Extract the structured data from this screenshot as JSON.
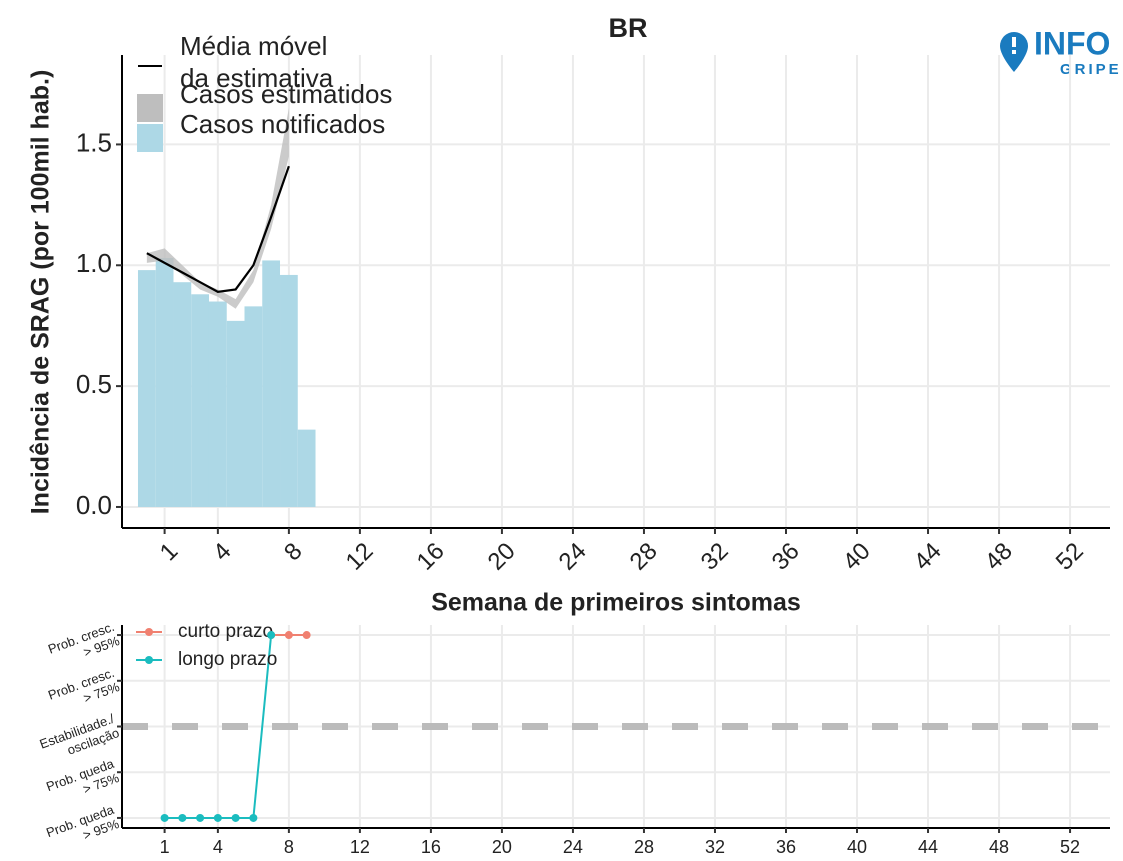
{
  "chart_data": [
    {
      "type": "bar",
      "title": "BR",
      "x_label": "Semana de primeiros sintomas",
      "y_label": "Incidência de SRAG (por 100mil hab.)",
      "xlim": [
        -1.4,
        54.25
      ],
      "ylim": [
        -0.087,
        1.87
      ],
      "xticks": [
        1,
        4,
        8,
        12,
        16,
        20,
        24,
        28,
        32,
        36,
        40,
        44,
        48,
        52
      ],
      "yticks": [
        {
          "value": 0,
          "label": "0.0"
        },
        {
          "value": 0.5,
          "label": "0.5"
        },
        {
          "value": 1,
          "label": "1.0"
        },
        {
          "value": 1.5,
          "label": "1.5"
        }
      ],
      "grid": true,
      "x": [
        0,
        1,
        2,
        3,
        4,
        5,
        6,
        7,
        8,
        9
      ],
      "series": [
        {
          "name": "Média móvel\nda estimativa",
          "type": "line",
          "color": "#000000",
          "values": [
            1.05,
            1.01,
            0.97,
            0.93,
            0.89,
            0.9,
            1.0,
            1.2,
            1.41,
            null
          ]
        },
        {
          "name": "Casos estimatidos",
          "type": "band",
          "color": "#bebebe",
          "lower": [
            1.01,
            1.02,
            0.96,
            0.9,
            0.87,
            0.82,
            0.93,
            1.15,
            1.45,
            null
          ],
          "upper": [
            1.05,
            1.07,
            1.0,
            0.93,
            0.9,
            0.86,
            0.98,
            1.25,
            1.65,
            null
          ]
        },
        {
          "name": "Casos notificados",
          "type": "bar",
          "color": "#add8e6",
          "values": [
            0.98,
            1.03,
            0.93,
            0.88,
            0.85,
            0.77,
            0.83,
            1.02,
            0.96,
            0.32
          ]
        }
      ]
    },
    {
      "type": "line",
      "xlim": [
        -1.4,
        54.25
      ],
      "ylim": [
        -2.22,
        2.22
      ],
      "xticks": [
        1,
        4,
        8,
        12,
        16,
        20,
        24,
        28,
        32,
        36,
        40,
        44,
        48,
        52
      ],
      "yticks": [
        {
          "value": 2,
          "label": "Prob. cresc.\n> 95%"
        },
        {
          "value": 1,
          "label": "Prob. cresc.\n> 75%"
        },
        {
          "value": 0,
          "label": "Estabilidade./\noscilação"
        },
        {
          "value": -1,
          "label": "Prob. queda\n> 75%"
        },
        {
          "value": -2,
          "label": "Prob. queda\n> 95%"
        }
      ],
      "grid": true,
      "reference_line": 0,
      "series": [
        {
          "name": "curto prazo",
          "color": "#f08070",
          "x": [
            7,
            8,
            9
          ],
          "values": [
            2,
            2,
            2
          ]
        },
        {
          "name": "longo prazo",
          "color": "#1bbcbf",
          "x": [
            1,
            2,
            3,
            4,
            5,
            6,
            7
          ],
          "values": [
            -2,
            -2,
            -2,
            -2,
            -2,
            -2,
            2
          ]
        }
      ]
    }
  ],
  "logo": {
    "top": "INFO",
    "bottom": "GRIPE"
  }
}
